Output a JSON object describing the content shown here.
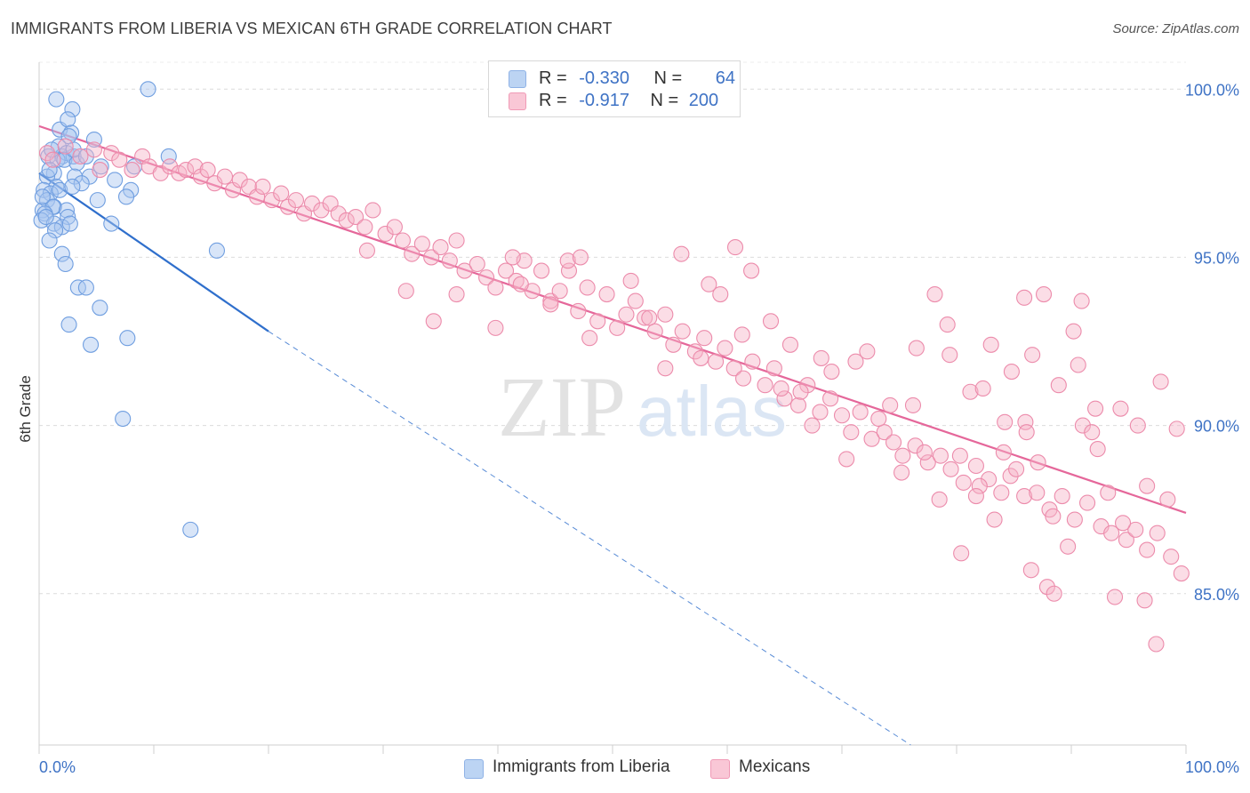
{
  "header": {
    "title": "IMMIGRANTS FROM LIBERIA VS MEXICAN 6TH GRADE CORRELATION CHART",
    "source": "Source: ZipAtlas.com"
  },
  "watermark": {
    "zip": "ZIP",
    "atlas": "atlas"
  },
  "legend": {
    "rows": [
      {
        "r_label": "R =",
        "r_value": "-0.330",
        "n_label": "N =",
        "n_value": "64",
        "color": "#a9c6ef"
      },
      {
        "r_label": "R =",
        "r_value": "-0.917",
        "n_label": "N =",
        "n_value": "200",
        "color": "#f6b4c8"
      }
    ]
  },
  "bottom_legend": {
    "series1": "Immigrants from Liberia",
    "series2": "Mexicans"
  },
  "chart_data": {
    "type": "scatter",
    "title": "IMMIGRANTS FROM LIBERIA VS MEXICAN 6TH GRADE CORRELATION CHART",
    "xlabel": "",
    "ylabel": "6th Grade",
    "xlim": [
      0,
      100
    ],
    "ylim": [
      80.5,
      100.8
    ],
    "x_tick_labels": [
      "0.0%",
      "100.0%"
    ],
    "y_ticks": [
      85,
      90,
      95,
      100
    ],
    "y_tick_labels": [
      "85.0%",
      "90.0%",
      "95.0%",
      "100.0%"
    ],
    "grid": true,
    "legend_position": "top-center",
    "series": [
      {
        "name": "Immigrants from Liberia",
        "color": "#a9c6ef",
        "stroke": "#6f9ee0",
        "line_color": "#2f6fcc",
        "R": -0.33,
        "N": 64,
        "trend": {
          "x": [
            0,
            20
          ],
          "y": [
            97.5,
            92.8
          ]
        },
        "trend_extension": {
          "x": [
            20,
            76
          ],
          "y": [
            92.8,
            80.5
          ]
        },
        "points": [
          [
            1.5,
            99.7
          ],
          [
            2.9,
            99.4
          ],
          [
            9.5,
            100.0
          ],
          [
            1.8,
            98.8
          ],
          [
            2.5,
            99.1
          ],
          [
            2.8,
            98.7
          ],
          [
            4.8,
            98.5
          ],
          [
            2.6,
            98.6
          ],
          [
            1.7,
            98.3
          ],
          [
            2.0,
            98.0
          ],
          [
            2.4,
            98.1
          ],
          [
            3.0,
            98.0
          ],
          [
            0.8,
            98.0
          ],
          [
            1.6,
            97.9
          ],
          [
            2.2,
            97.9
          ],
          [
            3.3,
            97.8
          ],
          [
            5.4,
            97.7
          ],
          [
            11.3,
            98.0
          ],
          [
            1.3,
            97.5
          ],
          [
            0.7,
            97.4
          ],
          [
            3.1,
            97.4
          ],
          [
            4.4,
            97.4
          ],
          [
            6.6,
            97.3
          ],
          [
            3.7,
            97.2
          ],
          [
            1.5,
            97.1
          ],
          [
            8.0,
            97.0
          ],
          [
            0.4,
            97.0
          ],
          [
            1.0,
            96.9
          ],
          [
            0.7,
            96.7
          ],
          [
            5.1,
            96.7
          ],
          [
            7.6,
            96.8
          ],
          [
            1.3,
            96.5
          ],
          [
            0.3,
            96.4
          ],
          [
            1.2,
            96.5
          ],
          [
            2.4,
            96.4
          ],
          [
            0.5,
            96.3
          ],
          [
            2.5,
            96.2
          ],
          [
            0.2,
            96.1
          ],
          [
            1.3,
            96.0
          ],
          [
            2.0,
            95.9
          ],
          [
            2.7,
            96.0
          ],
          [
            1.4,
            95.8
          ],
          [
            6.3,
            96.0
          ],
          [
            0.9,
            95.5
          ],
          [
            2.0,
            95.1
          ],
          [
            15.5,
            95.2
          ],
          [
            2.3,
            94.8
          ],
          [
            3.4,
            94.1
          ],
          [
            4.1,
            94.1
          ],
          [
            5.3,
            93.5
          ],
          [
            2.6,
            93.0
          ],
          [
            7.7,
            92.6
          ],
          [
            4.5,
            92.4
          ],
          [
            7.3,
            90.2
          ],
          [
            13.2,
            86.9
          ],
          [
            8.3,
            97.7
          ],
          [
            3.0,
            98.2
          ],
          [
            0.9,
            97.6
          ],
          [
            0.3,
            96.8
          ],
          [
            1.8,
            97.0
          ],
          [
            4.1,
            98.0
          ],
          [
            0.6,
            96.2
          ],
          [
            2.9,
            97.1
          ],
          [
            1.1,
            98.2
          ]
        ]
      },
      {
        "name": "Mexicans",
        "color": "#f6b4c8",
        "stroke": "#ec8bab",
        "line_color": "#e5679a",
        "R": -0.917,
        "N": 200,
        "trend": {
          "x": [
            0,
            100
          ],
          "y": [
            98.9,
            87.4
          ]
        },
        "points": [
          [
            0.7,
            98.1
          ],
          [
            1.2,
            97.9
          ],
          [
            2.3,
            98.3
          ],
          [
            3.6,
            98.0
          ],
          [
            4.8,
            98.2
          ],
          [
            5.3,
            97.6
          ],
          [
            6.3,
            98.1
          ],
          [
            7.0,
            97.9
          ],
          [
            8.1,
            97.6
          ],
          [
            9.0,
            98.0
          ],
          [
            9.6,
            97.7
          ],
          [
            10.6,
            97.5
          ],
          [
            11.4,
            97.7
          ],
          [
            12.2,
            97.5
          ],
          [
            12.8,
            97.6
          ],
          [
            13.6,
            97.7
          ],
          [
            14.1,
            97.4
          ],
          [
            14.7,
            97.6
          ],
          [
            15.3,
            97.2
          ],
          [
            16.2,
            97.4
          ],
          [
            16.9,
            97.0
          ],
          [
            17.5,
            97.3
          ],
          [
            18.3,
            97.1
          ],
          [
            19.0,
            96.8
          ],
          [
            19.5,
            97.1
          ],
          [
            20.3,
            96.7
          ],
          [
            21.1,
            96.9
          ],
          [
            21.7,
            96.5
          ],
          [
            22.4,
            96.7
          ],
          [
            23.1,
            96.3
          ],
          [
            23.8,
            96.6
          ],
          [
            24.6,
            96.4
          ],
          [
            25.4,
            96.6
          ],
          [
            26.1,
            96.3
          ],
          [
            26.8,
            96.1
          ],
          [
            27.6,
            96.2
          ],
          [
            28.4,
            95.9
          ],
          [
            29.1,
            96.4
          ],
          [
            30.2,
            95.7
          ],
          [
            31.0,
            95.9
          ],
          [
            31.7,
            95.5
          ],
          [
            32.5,
            95.1
          ],
          [
            33.4,
            95.4
          ],
          [
            34.2,
            95.0
          ],
          [
            35.0,
            95.3
          ],
          [
            35.8,
            94.9
          ],
          [
            36.4,
            95.5
          ],
          [
            37.1,
            94.6
          ],
          [
            38.2,
            94.8
          ],
          [
            39.0,
            94.4
          ],
          [
            39.8,
            94.1
          ],
          [
            40.7,
            94.6
          ],
          [
            41.6,
            94.3
          ],
          [
            42.3,
            94.9
          ],
          [
            43.0,
            94.0
          ],
          [
            43.8,
            94.6
          ],
          [
            44.6,
            93.7
          ],
          [
            45.4,
            94.0
          ],
          [
            46.2,
            94.6
          ],
          [
            47.0,
            93.4
          ],
          [
            47.8,
            94.1
          ],
          [
            48.7,
            93.1
          ],
          [
            49.5,
            93.9
          ],
          [
            50.4,
            92.9
          ],
          [
            51.2,
            93.3
          ],
          [
            52.0,
            93.7
          ],
          [
            52.8,
            93.2
          ],
          [
            53.7,
            92.8
          ],
          [
            54.6,
            93.3
          ],
          [
            55.3,
            92.4
          ],
          [
            56.1,
            92.8
          ],
          [
            57.2,
            92.2
          ],
          [
            58.0,
            92.6
          ],
          [
            59.0,
            91.9
          ],
          [
            59.8,
            92.3
          ],
          [
            60.6,
            91.7
          ],
          [
            61.4,
            91.4
          ],
          [
            62.2,
            91.9
          ],
          [
            63.3,
            91.2
          ],
          [
            64.1,
            91.7
          ],
          [
            65.0,
            90.8
          ],
          [
            66.2,
            90.6
          ],
          [
            67.0,
            91.2
          ],
          [
            68.1,
            90.4
          ],
          [
            69.0,
            90.8
          ],
          [
            70.0,
            90.3
          ],
          [
            70.8,
            89.8
          ],
          [
            71.6,
            90.4
          ],
          [
            72.6,
            89.6
          ],
          [
            73.7,
            89.8
          ],
          [
            74.5,
            89.5
          ],
          [
            75.3,
            89.1
          ],
          [
            76.4,
            89.4
          ],
          [
            77.5,
            88.9
          ],
          [
            78.6,
            89.1
          ],
          [
            79.5,
            88.7
          ],
          [
            80.6,
            88.3
          ],
          [
            81.7,
            88.8
          ],
          [
            82.8,
            88.4
          ],
          [
            83.9,
            88.0
          ],
          [
            84.7,
            88.5
          ],
          [
            85.9,
            87.9
          ],
          [
            87.0,
            88.0
          ],
          [
            88.1,
            87.5
          ],
          [
            89.2,
            87.9
          ],
          [
            90.3,
            87.2
          ],
          [
            91.4,
            87.7
          ],
          [
            92.6,
            87.0
          ],
          [
            93.5,
            86.8
          ],
          [
            94.8,
            86.6
          ],
          [
            95.6,
            86.9
          ],
          [
            96.6,
            86.3
          ],
          [
            97.5,
            86.8
          ],
          [
            98.7,
            86.1
          ],
          [
            99.6,
            85.6
          ],
          [
            28.6,
            95.2
          ],
          [
            32.0,
            94.0
          ],
          [
            34.4,
            93.1
          ],
          [
            36.4,
            93.9
          ],
          [
            39.8,
            92.9
          ],
          [
            41.3,
            95.0
          ],
          [
            42.0,
            94.2
          ],
          [
            44.6,
            93.6
          ],
          [
            46.1,
            94.9
          ],
          [
            47.2,
            95.0
          ],
          [
            48.0,
            92.6
          ],
          [
            51.6,
            94.3
          ],
          [
            53.2,
            93.2
          ],
          [
            54.6,
            91.7
          ],
          [
            56.0,
            95.1
          ],
          [
            57.7,
            92.0
          ],
          [
            58.4,
            94.2
          ],
          [
            59.4,
            93.9
          ],
          [
            60.7,
            95.3
          ],
          [
            61.3,
            92.7
          ],
          [
            62.1,
            94.6
          ],
          [
            63.8,
            93.1
          ],
          [
            64.7,
            91.1
          ],
          [
            65.5,
            92.4
          ],
          [
            66.4,
            91.0
          ],
          [
            67.4,
            90.0
          ],
          [
            68.2,
            92.0
          ],
          [
            69.1,
            91.6
          ],
          [
            70.4,
            89.0
          ],
          [
            71.2,
            91.9
          ],
          [
            72.2,
            92.2
          ],
          [
            73.2,
            90.2
          ],
          [
            74.2,
            90.6
          ],
          [
            75.2,
            88.6
          ],
          [
            76.2,
            90.6
          ],
          [
            77.2,
            89.2
          ],
          [
            78.5,
            87.8
          ],
          [
            79.4,
            92.1
          ],
          [
            80.3,
            89.1
          ],
          [
            81.2,
            91.0
          ],
          [
            82.0,
            88.2
          ],
          [
            83.0,
            92.4
          ],
          [
            84.1,
            89.2
          ],
          [
            85.2,
            88.7
          ],
          [
            86.0,
            90.1
          ],
          [
            87.1,
            88.9
          ],
          [
            88.4,
            87.3
          ],
          [
            89.7,
            86.4
          ],
          [
            91.0,
            90.0
          ],
          [
            92.3,
            89.3
          ],
          [
            93.2,
            88.0
          ],
          [
            94.5,
            87.1
          ],
          [
            95.8,
            90.0
          ],
          [
            96.6,
            88.2
          ],
          [
            97.8,
            91.3
          ],
          [
            98.4,
            87.8
          ],
          [
            99.2,
            89.9
          ],
          [
            80.4,
            86.2
          ],
          [
            83.3,
            87.2
          ],
          [
            86.5,
            85.7
          ],
          [
            87.9,
            85.2
          ],
          [
            88.5,
            85.0
          ],
          [
            90.6,
            91.8
          ],
          [
            91.8,
            89.8
          ],
          [
            93.8,
            84.9
          ],
          [
            94.3,
            90.5
          ],
          [
            96.4,
            84.8
          ],
          [
            97.4,
            83.5
          ],
          [
            82.3,
            91.1
          ],
          [
            84.8,
            91.6
          ],
          [
            86.6,
            92.1
          ],
          [
            88.9,
            91.2
          ],
          [
            90.2,
            92.8
          ],
          [
            92.1,
            90.5
          ],
          [
            84.2,
            90.1
          ],
          [
            86.1,
            89.8
          ],
          [
            76.5,
            92.3
          ],
          [
            78.1,
            93.9
          ],
          [
            79.2,
            93.0
          ],
          [
            85.9,
            93.8
          ],
          [
            81.7,
            87.9
          ],
          [
            87.6,
            93.9
          ],
          [
            90.9,
            93.7
          ]
        ]
      }
    ]
  }
}
